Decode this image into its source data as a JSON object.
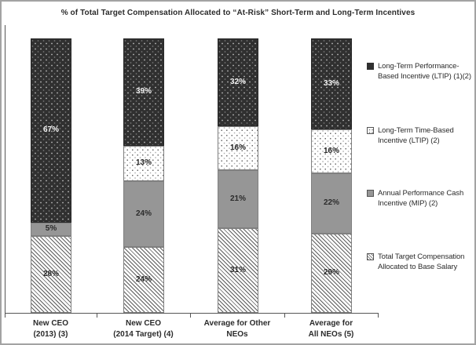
{
  "title": "% of Total Target Compensation Allocated to “At-Risk” Short-Term and Long-Term Incentives",
  "colors": {
    "dark_segment": "#303030",
    "dark_segment_dots": "#9a9a9a",
    "gray_segment": "#969696",
    "white_dot_segment": "#ffffff",
    "hatch_line": "#5d5d5d",
    "axis": "#555555",
    "text": "#2b2b2b",
    "label_on_dark": "#f2f2f2",
    "frame_border": "#a3a3a3"
  },
  "chart_data": {
    "type": "bar",
    "stacked": true,
    "title": "% of Total Target Compensation Allocated to “At-Risk” Short-Term and Long-Term Incentives",
    "xlabel": "",
    "ylabel": "",
    "unit": "%",
    "ylim": [
      0,
      100
    ],
    "grid": false,
    "legend_position": "right",
    "categories": [
      "New CEO (2013) (3)",
      "New CEO (2014 Target) (4)",
      "Average for Other NEOs",
      "Average for All NEOs (5)"
    ],
    "series": [
      {
        "name": "Long-Term Performance-Based Incentive (LTIP) (1)(2)",
        "pattern": "dark-dots",
        "values": [
          67,
          39,
          32,
          33
        ]
      },
      {
        "name": "Long-Term Time-Based Incentive (LTIP) (2)",
        "pattern": "white-dots",
        "values": [
          0,
          13,
          16,
          16
        ]
      },
      {
        "name": "Annual Performance Cash Incentive (MIP) (2)",
        "pattern": "solid-gray",
        "values": [
          5,
          24,
          21,
          22
        ]
      },
      {
        "name": "Total Target Compensation Allocated to Base Salary",
        "pattern": "diagonal-hatch",
        "values": [
          28,
          24,
          31,
          29
        ]
      }
    ],
    "bars": [
      {
        "label_line1": "New CEO",
        "label_line2": "(2013) (3)",
        "segments": [
          {
            "series": "Long-Term Performance-Based Incentive (LTIP) (1)(2)",
            "pattern": "dark-dots",
            "value": 67,
            "label": "67%"
          },
          {
            "series": "Annual Performance Cash Incentive (MIP) (2)",
            "pattern": "solid-gray",
            "value": 5,
            "label": "5%"
          },
          {
            "series": "Total Target Compensation Allocated to Base Salary",
            "pattern": "diagonal-hatch",
            "value": 28,
            "label": "28%"
          }
        ]
      },
      {
        "label_line1": "New CEO",
        "label_line2": "(2014 Target) (4)",
        "segments": [
          {
            "series": "Long-Term Performance-Based Incentive (LTIP) (1)(2)",
            "pattern": "dark-dots",
            "value": 39,
            "label": "39%"
          },
          {
            "series": "Long-Term Time-Based Incentive (LTIP) (2)",
            "pattern": "white-dots",
            "value": 13,
            "label": "13%"
          },
          {
            "series": "Annual Performance Cash Incentive (MIP) (2)",
            "pattern": "solid-gray",
            "value": 24,
            "label": "24%"
          },
          {
            "series": "Total Target Compensation Allocated to Base Salary",
            "pattern": "diagonal-hatch",
            "value": 24,
            "label": "24%"
          }
        ]
      },
      {
        "label_line1": "Average for Other",
        "label_line2": "NEOs",
        "segments": [
          {
            "series": "Long-Term Performance-Based Incentive (LTIP) (1)(2)",
            "pattern": "dark-dots",
            "value": 32,
            "label": "32%"
          },
          {
            "series": "Long-Term Time-Based Incentive (LTIP) (2)",
            "pattern": "white-dots",
            "value": 16,
            "label": "16%"
          },
          {
            "series": "Annual Performance Cash Incentive (MIP) (2)",
            "pattern": "solid-gray",
            "value": 21,
            "label": "21%"
          },
          {
            "series": "Total Target Compensation Allocated to Base Salary",
            "pattern": "diagonal-hatch",
            "value": 31,
            "label": "31%"
          }
        ]
      },
      {
        "label_line1": "Average for",
        "label_line2": "All NEOs (5)",
        "segments": [
          {
            "series": "Long-Term Performance-Based Incentive (LTIP) (1)(2)",
            "pattern": "dark-dots",
            "value": 33,
            "label": "33%"
          },
          {
            "series": "Long-Term Time-Based Incentive (LTIP) (2)",
            "pattern": "white-dots",
            "value": 16,
            "label": "16%"
          },
          {
            "series": "Annual Performance Cash Incentive (MIP) (2)",
            "pattern": "solid-gray",
            "value": 22,
            "label": "22%"
          },
          {
            "series": "Total Target Compensation Allocated to Base Salary",
            "pattern": "diagonal-hatch",
            "value": 29,
            "label": "29%"
          }
        ]
      }
    ]
  },
  "legend": {
    "items": [
      {
        "swatch": "dark-dots-swatch",
        "label": "Long-Term Performance-Based Incentive (LTIP) (1)(2)"
      },
      {
        "swatch": "white-dots-swatch",
        "label": "Long-Term Time-Based Incentive (LTIP) (2)"
      },
      {
        "swatch": "solid-gray-swatch",
        "label": "Annual Performance Cash Incentive (MIP) (2)"
      },
      {
        "swatch": "diagonal-hatch-swatch",
        "label": "Total Target Compensation Allocated to Base Salary"
      }
    ]
  }
}
